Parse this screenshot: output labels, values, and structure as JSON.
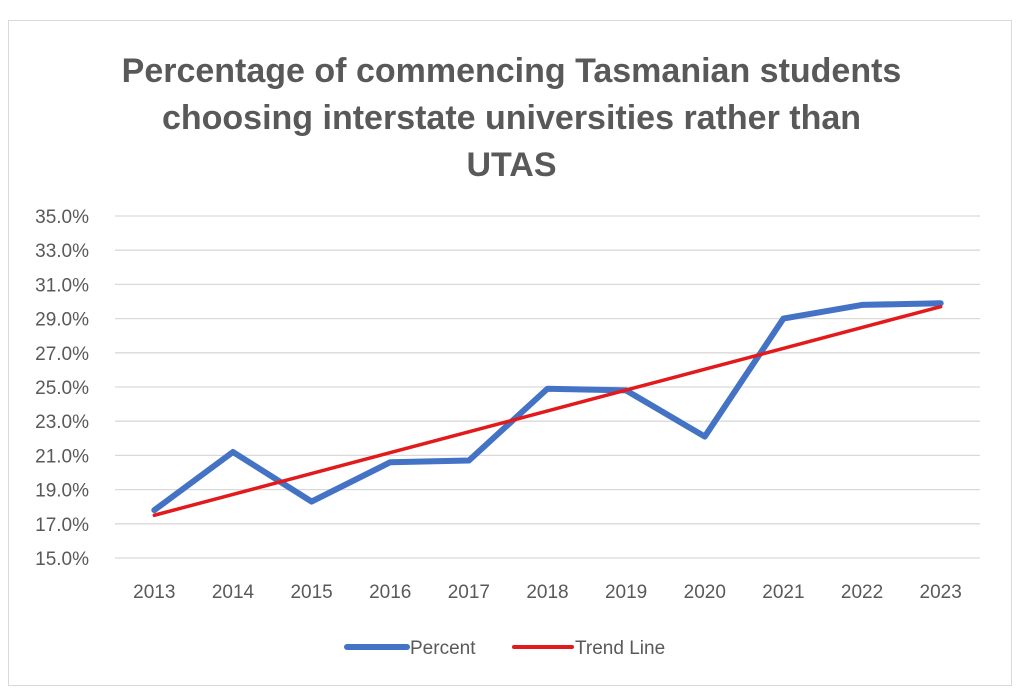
{
  "chart_data": {
    "type": "line",
    "title_lines": [
      "Percentage of commencing Tasmanian students",
      "choosing interstate universities rather than",
      "UTAS"
    ],
    "categories": [
      "2013",
      "2014",
      "2015",
      "2016",
      "2017",
      "2018",
      "2019",
      "2020",
      "2021",
      "2022",
      "2023"
    ],
    "y_ticks": [
      "15.0%",
      "17.0%",
      "19.0%",
      "21.0%",
      "23.0%",
      "25.0%",
      "27.0%",
      "29.0%",
      "31.0%",
      "33.0%",
      "35.0%"
    ],
    "ylim": [
      15,
      35
    ],
    "grid": true,
    "legend_position": "bottom",
    "series": [
      {
        "name": "Percent",
        "color": "#4472c4",
        "values": [
          17.8,
          21.2,
          18.3,
          20.6,
          20.7,
          24.9,
          24.8,
          22.1,
          29.0,
          29.8,
          29.9
        ]
      },
      {
        "name": "Trend Line",
        "color": "#e31a1c",
        "values": [
          17.5,
          18.7,
          19.9,
          21.1,
          22.3,
          23.6,
          24.8,
          26.0,
          27.2,
          28.4,
          29.7
        ]
      }
    ]
  }
}
